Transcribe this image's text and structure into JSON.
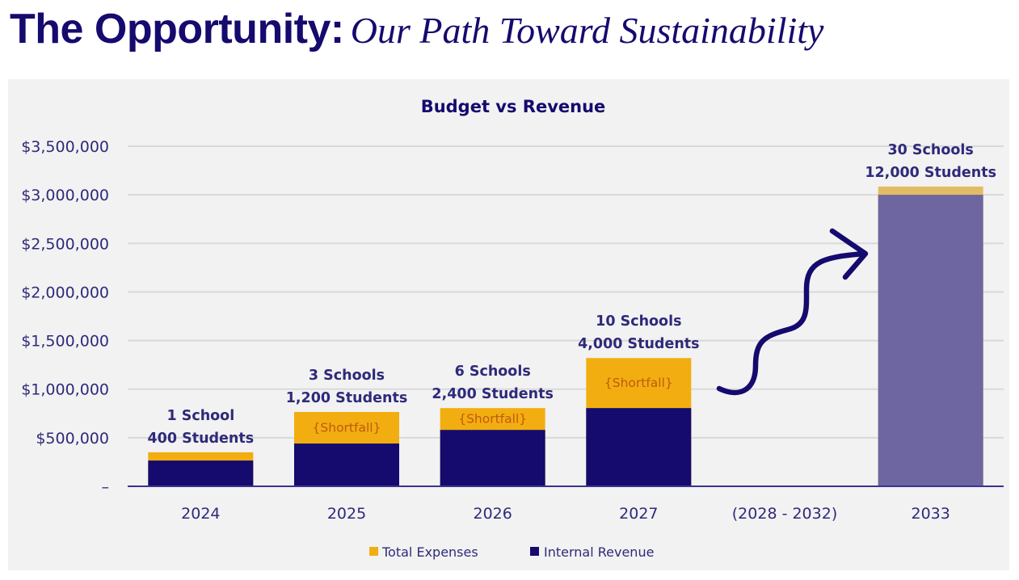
{
  "page": {
    "title_main": "The Opportunity:",
    "title_sub": "Our Path Toward Sustainability"
  },
  "colors": {
    "expenses": "#f2ae10",
    "revenue": "#150a6e",
    "projected_revenue": "#6e66a0",
    "projected_expenses": "#e2bc64",
    "text": "#2e2a7a",
    "shortfall_text": "#c05a10",
    "arrow": "#150a6e"
  },
  "chart_data": {
    "type": "bar",
    "stacked": "overlapping",
    "title": "Budget vs Revenue",
    "xlabel": "",
    "ylabel": "",
    "ylim": [
      0,
      3500000
    ],
    "yticks": [
      0,
      500000,
      1000000,
      1500000,
      2000000,
      2500000,
      3000000,
      3500000
    ],
    "ytick_labels": [
      "–",
      "$500,000",
      "$1,000,000",
      "$1,500,000",
      "$2,000,000",
      "$2,500,000",
      "$3,000,000",
      "$3,500,000"
    ],
    "grid": true,
    "legend_position": "bottom",
    "categories": [
      "2024",
      "2025",
      "2026",
      "2027",
      "(2028 - 2032)",
      "2033"
    ],
    "series": [
      {
        "name": "Total Expenses",
        "values": [
          350000,
          765000,
          805000,
          1320000,
          null,
          3085000
        ]
      },
      {
        "name": "Internal Revenue",
        "values": [
          265000,
          440000,
          580000,
          805000,
          null,
          3000000
        ]
      }
    ],
    "annotations": [
      {
        "category": "2024",
        "line1": "1 School",
        "line2": "400 Students",
        "shortfall": ""
      },
      {
        "category": "2025",
        "line1": "3 Schools",
        "line2": "1,200 Students",
        "shortfall": "{Shortfall}"
      },
      {
        "category": "2026",
        "line1": "6 Schools",
        "line2": "2,400 Students",
        "shortfall": "{Shortfall}"
      },
      {
        "category": "2027",
        "line1": "10 Schools",
        "line2": "4,000 Students",
        "shortfall": "{Shortfall}"
      },
      {
        "category": "(2028 - 2032)",
        "line1": "",
        "line2": "",
        "shortfall": ""
      },
      {
        "category": "2033",
        "line1": "30 Schools",
        "line2": "12,000 Students",
        "shortfall": ""
      }
    ],
    "projected_category": "2033",
    "arrow_annotation": "growth-arrow"
  }
}
